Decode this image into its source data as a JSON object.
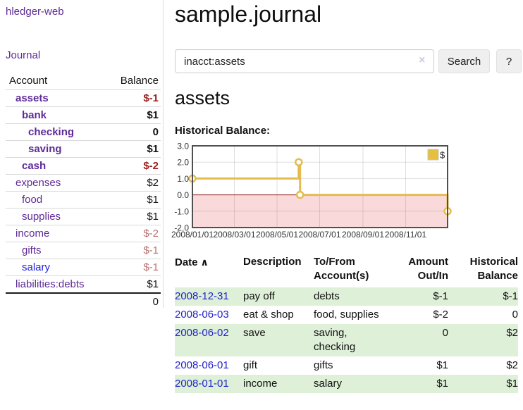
{
  "app": {
    "brand": "hledger-web"
  },
  "sidebar": {
    "journal_link": "Journal",
    "accounts": {
      "header_account": "Account",
      "header_balance": "Balance",
      "rows": [
        {
          "name": "assets",
          "indent": 1,
          "bold": true,
          "name_color": "purple",
          "balance": "$-1",
          "balance_class": "neg-strong"
        },
        {
          "name": "bank",
          "indent": 2,
          "bold": true,
          "name_color": "purple",
          "balance": "$1",
          "balance_class": "strong"
        },
        {
          "name": "checking",
          "indent": 3,
          "bold": true,
          "name_color": "purple",
          "balance": "0",
          "balance_class": "strong"
        },
        {
          "name": "saving",
          "indent": 3,
          "bold": true,
          "name_color": "purple",
          "balance": "$1",
          "balance_class": "strong"
        },
        {
          "name": "cash",
          "indent": 2,
          "bold": true,
          "name_color": "purple",
          "balance": "$-2",
          "balance_class": "neg-strong"
        },
        {
          "name": "expenses",
          "indent": 1,
          "bold": false,
          "name_color": "purple",
          "balance": "$2",
          "balance_class": "plain"
        },
        {
          "name": "food",
          "indent": 2,
          "bold": false,
          "name_color": "purple",
          "balance": "$1",
          "balance_class": "plain"
        },
        {
          "name": "supplies",
          "indent": 2,
          "bold": false,
          "name_color": "purple",
          "balance": "$1",
          "balance_class": "plain"
        },
        {
          "name": "income",
          "indent": 1,
          "bold": false,
          "name_color": "purple",
          "balance": "$-2",
          "balance_class": "neg-soft"
        },
        {
          "name": "gifts",
          "indent": 2,
          "bold": false,
          "name_color": "purple",
          "balance": "$-1",
          "balance_class": "neg-soft"
        },
        {
          "name": "salary",
          "indent": 2,
          "bold": false,
          "name_color": "blue",
          "balance": "$-1",
          "balance_class": "neg-soft"
        },
        {
          "name": "liabilities:debts",
          "indent": 1,
          "bold": false,
          "name_color": "purple",
          "balance": "$1",
          "balance_class": "plain"
        }
      ],
      "total": "0"
    }
  },
  "header": {
    "title": "sample.journal"
  },
  "search": {
    "value": "inacct:assets",
    "clear_icon": "×",
    "search_label": "Search",
    "help_label": "?"
  },
  "account_page": {
    "title": "assets",
    "chart_title": "Historical Balance:"
  },
  "chart_data": {
    "type": "line",
    "step": true,
    "title": "Historical Balance",
    "legend": [
      {
        "label": "$",
        "color": "#e7bf3e"
      }
    ],
    "series": [
      {
        "name": "$",
        "points": [
          {
            "date": "2008-01-01",
            "value": 1
          },
          {
            "date": "2008-06-01",
            "value": 2
          },
          {
            "date": "2008-06-03",
            "value": 0
          },
          {
            "date": "2008-12-31",
            "value": -1
          }
        ]
      }
    ],
    "x_range": [
      "2008-01-01",
      "2008-12-31"
    ],
    "x_ticks": [
      "2008/01/01",
      "2008/03/01",
      "2008/05/01",
      "2008/07/01",
      "2008/09/01",
      "2008/11/01"
    ],
    "y_ticks": [
      "3.0",
      "2.0",
      "1.0",
      "0.0",
      "-1.0",
      "-2.0"
    ],
    "ylim": [
      -2,
      3
    ],
    "grid": true,
    "legend_position": "top-right",
    "line_color": "#e4bc4e",
    "negative_fill": "#f9d9d9",
    "zero_line_color": "#8b1a1a"
  },
  "register": {
    "headers": [
      "Date",
      "Description",
      "To/From Account(s)",
      "Amount Out/In",
      "Historical Balance"
    ],
    "sort_icon": "∧",
    "rows": [
      {
        "date": "2008-12-31",
        "description": "pay off",
        "accounts": "debts",
        "amount": "$-1",
        "amount_neg": true,
        "balance": "$-1",
        "balance_neg": true
      },
      {
        "date": "2008-06-03",
        "description": "eat & shop",
        "accounts": "food, supplies",
        "amount": "$-2",
        "amount_neg": true,
        "balance": "0",
        "balance_neg": false
      },
      {
        "date": "2008-06-02",
        "description": "save",
        "accounts": "saving, checking",
        "amount": "0",
        "amount_neg": false,
        "balance": "$2",
        "balance_neg": false
      },
      {
        "date": "2008-06-01",
        "description": "gift",
        "accounts": "gifts",
        "amount": "$1",
        "amount_neg": false,
        "balance": "$2",
        "balance_neg": false
      },
      {
        "date": "2008-01-01",
        "description": "income",
        "accounts": "salary",
        "amount": "$1",
        "amount_neg": false,
        "balance": "$1",
        "balance_neg": false
      }
    ]
  },
  "colors": {
    "link_purple": "#5e2b97",
    "link_blue": "#2222dd",
    "date_link_blue": "#2222cc",
    "negative_strong": "#9d1d1d",
    "negative_soft": "#b97070",
    "row_stripe_green": "#dff0d8",
    "chart_line_gold": "#e4bc4e",
    "chart_negative_pink": "#f9d9d9"
  }
}
